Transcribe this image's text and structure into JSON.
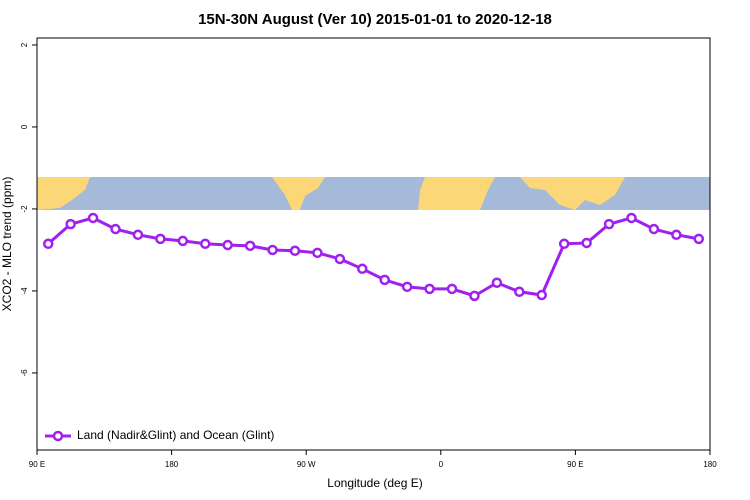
{
  "chart_data": {
    "type": "line",
    "title": "15N-30N August (Ver 10)   2015-01-01 to 2020-12-18",
    "x_label": "Longitude (deg E)",
    "y_label": "XCO2 - MLO trend (ppm)",
    "x": [
      97.5,
      112.5,
      127.5,
      142.5,
      157.5,
      172.5,
      187.5,
      202.5,
      217.5,
      232.5,
      247.5,
      262.5,
      277.5,
      292.5,
      307.5,
      322.5,
      337.5,
      352.5,
      367.5,
      382.5,
      397.5,
      412.5,
      427.5,
      442.5,
      457.5,
      472.5,
      487.5,
      502.5,
      517.5,
      532.5
    ],
    "series": [
      {
        "name": "Land (Nadir&Glint) and Ocean (Glint)",
        "color": "#a020f0",
        "values": [
          -2.85,
          -2.37,
          -2.22,
          -2.49,
          -2.63,
          -2.73,
          -2.78,
          -2.85,
          -2.88,
          -2.9,
          -3.0,
          -3.02,
          -3.07,
          -3.22,
          -3.46,
          -3.73,
          -3.9,
          -3.95,
          -3.95,
          -4.12,
          -3.8,
          -4.02,
          -4.1,
          -2.85,
          -2.83,
          -2.37,
          -2.22,
          -2.49,
          -2.63,
          -2.73
        ]
      }
    ],
    "xlim": [
      90,
      540
    ],
    "xticks": [
      {
        "value": 90,
        "label": "90 E"
      },
      180,
      {
        "value": 270,
        "label": "90 W"
      },
      {
        "value": 360,
        "label": "0"
      },
      {
        "value": 450,
        "label": "90 E"
      },
      {
        "value": 540,
        "label": "180"
      }
    ],
    "ylim": [
      -7.88,
      2.17
    ],
    "yticks": [
      2,
      0,
      -2,
      -4,
      -6
    ],
    "legend": "bottom-left"
  }
}
